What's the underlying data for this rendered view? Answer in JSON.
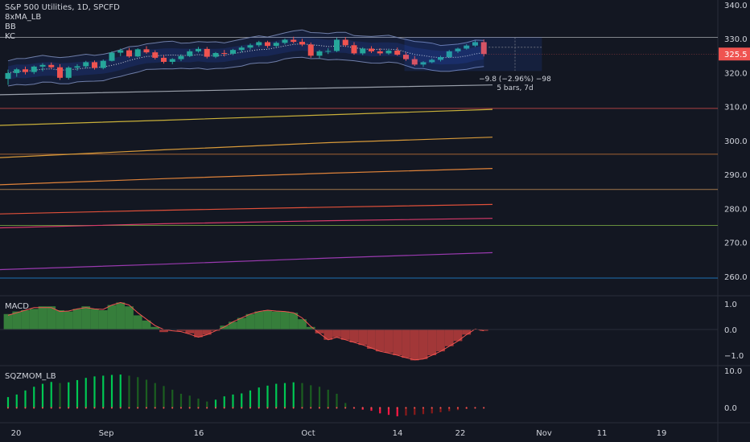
{
  "title": "S&P 500 Utilities, 1D, SPCFD",
  "indicators": [
    "8xMA_LB",
    "BB",
    "KC"
  ],
  "price_tag": "325.5",
  "measure": {
    "line1": "−9.8 (−2.96%) −98",
    "line2": "5 bars, 7d"
  },
  "panes": {
    "macd": "MACD",
    "sqz": "SQZMOM_LB"
  },
  "colors": {
    "up": "#26a69a",
    "down": "#ef5350",
    "bg": "#131722"
  },
  "chart_data": {
    "type": "candlestick",
    "x_ticks": [
      "20",
      "Sep",
      "16",
      "Oct",
      "14",
      "22",
      "Nov",
      "11",
      "19"
    ],
    "y_ticks": [
      340,
      330,
      320,
      310,
      300,
      290,
      280,
      270,
      260
    ],
    "macd_ticks": [
      "1.0",
      "0.0",
      "−1.0"
    ],
    "sqz_ticks": [
      "10.0",
      "0.0"
    ],
    "candles": [
      [
        318.2,
        320.9,
        316.4,
        319.9
      ],
      [
        319.9,
        321.4,
        318.8,
        321.0
      ],
      [
        321.0,
        321.8,
        319.5,
        320.2
      ],
      [
        320.2,
        322.1,
        319.6,
        321.8
      ],
      [
        321.8,
        322.8,
        320.4,
        322.3
      ],
      [
        322.3,
        323.0,
        321.1,
        321.6
      ],
      [
        321.6,
        322.5,
        317.9,
        318.5
      ],
      [
        318.5,
        321.9,
        318.0,
        321.5
      ],
      [
        321.5,
        322.5,
        320.6,
        321.9
      ],
      [
        321.9,
        323.5,
        321.3,
        323.1
      ],
      [
        323.1,
        323.6,
        320.9,
        321.4
      ],
      [
        321.4,
        323.9,
        321.0,
        323.5
      ],
      [
        323.5,
        326.3,
        323.3,
        325.9
      ],
      [
        325.9,
        327.1,
        324.9,
        326.6
      ],
      [
        326.6,
        327.3,
        324.4,
        324.8
      ],
      [
        324.8,
        327.2,
        324.6,
        326.9
      ],
      [
        326.9,
        327.8,
        325.6,
        326.0
      ],
      [
        326.0,
        326.6,
        323.9,
        324.4
      ],
      [
        324.4,
        325.2,
        322.7,
        323.2
      ],
      [
        323.2,
        324.3,
        322.5,
        324.0
      ],
      [
        324.0,
        325.4,
        323.4,
        324.9
      ],
      [
        324.9,
        326.9,
        324.6,
        326.3
      ],
      [
        326.3,
        327.6,
        325.9,
        327.0
      ],
      [
        327.0,
        327.6,
        324.2,
        324.7
      ],
      [
        324.7,
        326.1,
        324.3,
        325.8
      ],
      [
        325.8,
        326.7,
        324.8,
        325.6
      ],
      [
        325.6,
        327.0,
        325.2,
        326.7
      ],
      [
        326.7,
        327.9,
        326.0,
        327.4
      ],
      [
        327.4,
        328.6,
        326.8,
        328.1
      ],
      [
        328.1,
        329.4,
        327.6,
        329.0
      ],
      [
        329.0,
        329.4,
        327.3,
        327.9
      ],
      [
        327.9,
        329.2,
        327.5,
        328.8
      ],
      [
        328.8,
        330.1,
        328.3,
        329.7
      ],
      [
        329.7,
        330.6,
        328.6,
        329.1
      ],
      [
        329.1,
        330.0,
        327.8,
        328.3
      ],
      [
        328.3,
        328.9,
        324.4,
        325.0
      ],
      [
        325.0,
        326.7,
        324.2,
        326.3
      ],
      [
        326.3,
        327.2,
        325.5,
        326.4
      ],
      [
        326.4,
        330.3,
        326.1,
        329.7
      ],
      [
        329.7,
        330.5,
        327.6,
        328.1
      ],
      [
        328.1,
        329.0,
        325.3,
        325.7
      ],
      [
        325.7,
        327.5,
        325.2,
        327.1
      ],
      [
        327.1,
        327.8,
        325.8,
        326.3
      ],
      [
        326.3,
        327.2,
        325.1,
        325.7
      ],
      [
        325.7,
        327.0,
        325.3,
        326.5
      ],
      [
        326.5,
        327.4,
        325.0,
        325.3
      ],
      [
        325.3,
        326.0,
        323.5,
        324.0
      ],
      [
        324.0,
        324.9,
        322.0,
        322.4
      ],
      [
        322.4,
        323.4,
        321.7,
        323.1
      ],
      [
        323.1,
        324.2,
        322.8,
        323.8
      ],
      [
        323.8,
        325.0,
        323.3,
        324.6
      ],
      [
        324.6,
        326.7,
        324.3,
        326.3
      ],
      [
        326.3,
        327.4,
        325.8,
        327.1
      ],
      [
        327.1,
        328.4,
        326.8,
        328.0
      ],
      [
        328.0,
        329.5,
        327.6,
        329.0
      ],
      [
        329.0,
        329.8,
        324.8,
        325.5
      ]
    ],
    "macd_hist": [
      0.6,
      0.7,
      0.75,
      0.8,
      0.9,
      0.9,
      0.75,
      0.7,
      0.8,
      0.9,
      0.8,
      0.75,
      0.95,
      1.05,
      0.9,
      0.55,
      0.35,
      0.1,
      -0.1,
      0.0,
      -0.05,
      -0.15,
      -0.3,
      -0.2,
      -0.05,
      0.15,
      0.3,
      0.45,
      0.6,
      0.7,
      0.75,
      0.7,
      0.7,
      0.65,
      0.4,
      0.1,
      -0.15,
      -0.4,
      -0.3,
      -0.4,
      -0.5,
      -0.6,
      -0.75,
      -0.85,
      -0.9,
      -1.0,
      -1.1,
      -1.2,
      -1.15,
      -1.0,
      -0.85,
      -0.65,
      -0.45,
      -0.2,
      0.0,
      -0.05
    ],
    "macd_line": [
      0.55,
      0.65,
      0.75,
      0.85,
      0.85,
      0.85,
      0.7,
      0.72,
      0.8,
      0.85,
      0.8,
      0.78,
      0.95,
      1.05,
      0.95,
      0.65,
      0.4,
      0.15,
      0.0,
      -0.05,
      -0.08,
      -0.18,
      -0.3,
      -0.2,
      -0.05,
      0.1,
      0.3,
      0.45,
      0.6,
      0.7,
      0.75,
      0.72,
      0.7,
      0.65,
      0.45,
      0.12,
      -0.15,
      -0.4,
      -0.3,
      -0.4,
      -0.5,
      -0.6,
      -0.72,
      -0.85,
      -0.92,
      -1.0,
      -1.1,
      -1.18,
      -1.15,
      -1.0,
      -0.85,
      -0.65,
      -0.45,
      -0.2,
      0.02,
      -0.05
    ],
    "sqz_values": [
      2.8,
      3.5,
      4.6,
      5.6,
      6.4,
      6.9,
      6.6,
      6.8,
      7.4,
      8.0,
      8.4,
      8.6,
      8.8,
      8.9,
      8.6,
      8.2,
      7.5,
      6.6,
      5.8,
      4.8,
      3.7,
      3.2,
      2.4,
      1.6,
      2.1,
      3.0,
      3.5,
      3.8,
      4.6,
      5.4,
      5.9,
      6.4,
      6.6,
      6.8,
      6.6,
      6.0,
      5.6,
      4.8,
      3.7,
      1.2,
      -0.3,
      -0.6,
      -0.9,
      -1.6,
      -2.0,
      -2.4,
      -2.2,
      -2.0,
      -1.8,
      -1.6,
      -1.3,
      -1.0,
      -0.7,
      -0.4,
      -0.2,
      -0.1
    ],
    "bb_upper": [],
    "ma_levels": [
      {
        "name": "",
        "color": "#9aa0ab",
        "values": [
          313.5,
          314.5,
          315.5,
          316.4
        ]
      },
      {
        "name": "",
        "color": "#c9b03a",
        "values": [
          304.5,
          306.0,
          307.6,
          309.2
        ]
      },
      {
        "name": "",
        "color": "#d89a3a",
        "values": [
          295.0,
          297.3,
          299.4,
          301.0
        ]
      },
      {
        "name": "",
        "color": "#e0833a",
        "values": [
          287.0,
          288.8,
          290.4,
          291.8
        ]
      },
      {
        "name": "",
        "color": "#e0503a",
        "values": [
          278.4,
          279.5,
          280.4,
          281.2
        ]
      },
      {
        "name": "",
        "color": "#d83a6a",
        "values": [
          274.3,
          275.5,
          276.4,
          277.1
        ]
      },
      {
        "name": "",
        "color": "#9a3ab0",
        "values": [
          262.0,
          263.6,
          265.4,
          267.0
        ]
      }
    ],
    "hlines": [
      {
        "value": 330.4,
        "color": "#b0b3ba"
      },
      {
        "value": 309.5,
        "color": "#ef5350"
      },
      {
        "value": 296.0,
        "color": "#e0833a"
      },
      {
        "value": 285.6,
        "color": "#e0a060"
      },
      {
        "value": 275.0,
        "color": "#8bc34a"
      },
      {
        "value": 259.5,
        "color": "#2196f3"
      }
    ]
  }
}
